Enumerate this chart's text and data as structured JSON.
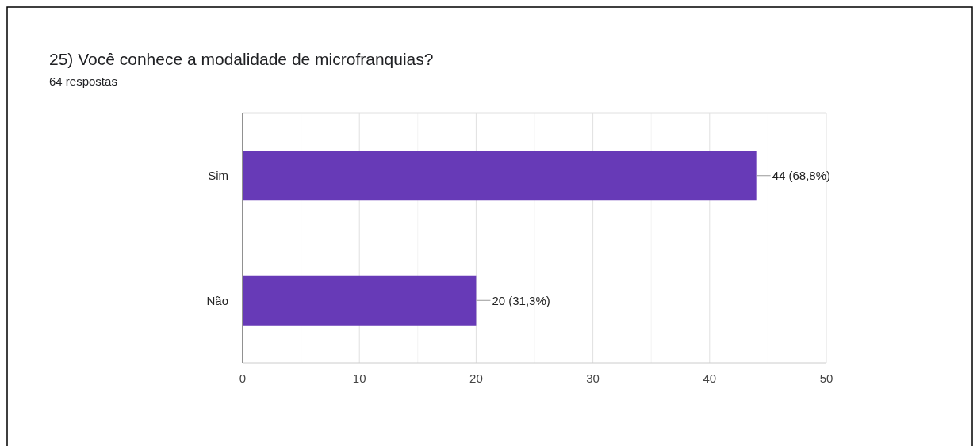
{
  "chart_data": {
    "type": "bar",
    "orientation": "horizontal",
    "title": "25) Você conhece a modalidade de microfranquias?",
    "subtitle": "64 respostas",
    "categories": [
      "Sim",
      "Não"
    ],
    "values": [
      44,
      20
    ],
    "color": "#673ab7",
    "value_labels": [
      "44 (68,8%)",
      "20 (31,3%)"
    ],
    "xlim": [
      0,
      50
    ],
    "xticks": [
      0,
      {
        "value": 5,
        "label": null
      },
      10,
      {
        "value": 15,
        "label": null
      },
      20,
      {
        "value": 25,
        "label": null
      },
      30,
      {
        "value": 35,
        "label": null
      },
      40,
      {
        "value": 45,
        "label": null
      },
      50
    ],
    "grid": "x"
  }
}
